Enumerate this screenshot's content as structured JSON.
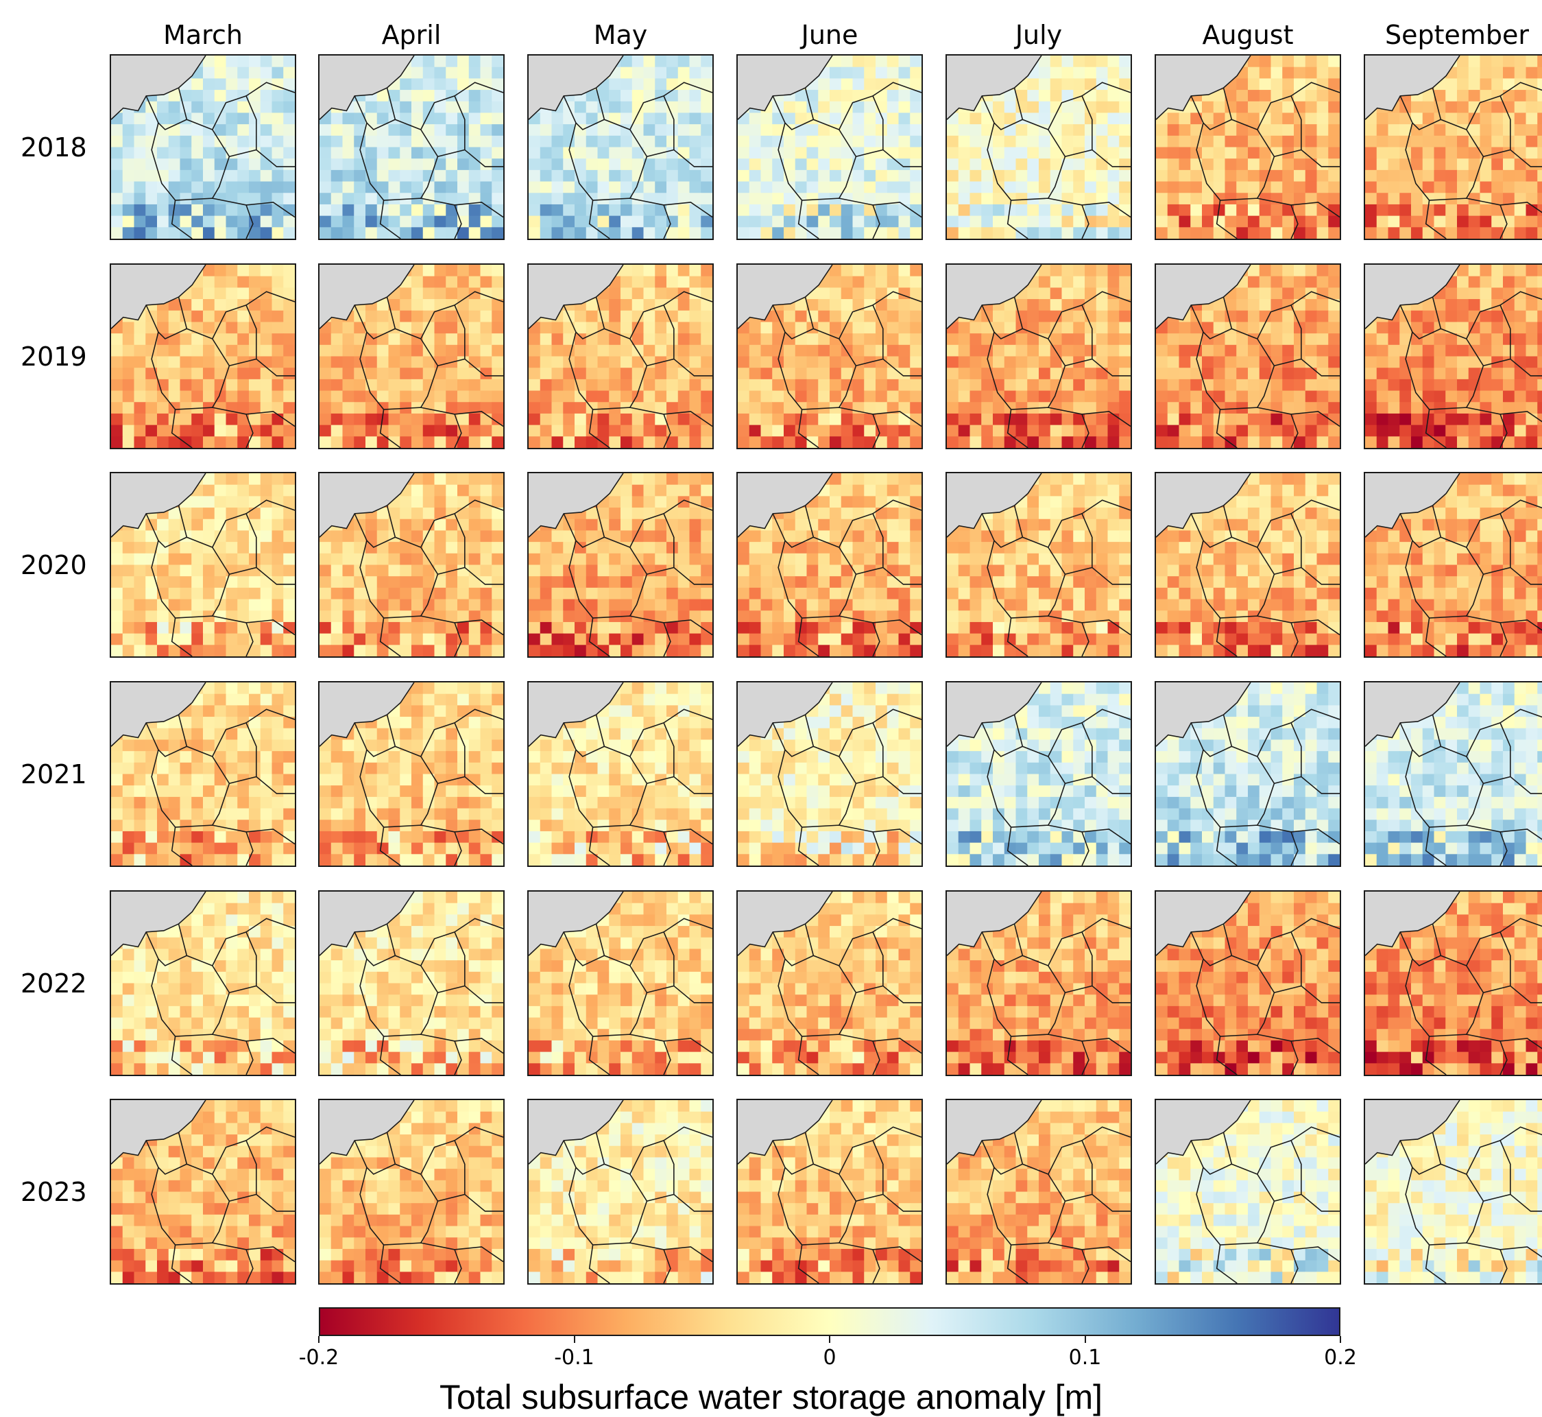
{
  "figure": {
    "columns": [
      "March",
      "April",
      "May",
      "June",
      "July",
      "August",
      "September"
    ],
    "rows": [
      "2018",
      "2019",
      "2020",
      "2021",
      "2022",
      "2023"
    ],
    "colorbar": {
      "label": "Total subsurface water storage anomaly [m]",
      "ticks": [
        "-0.2",
        "-0.1",
        "0",
        "0.1",
        "0.2"
      ],
      "range": [
        -0.2,
        0.2
      ],
      "colors": [
        "#a50026",
        "#d73027",
        "#f46d43",
        "#fdae61",
        "#fee090",
        "#ffffbf",
        "#e0f3f8",
        "#abd9e9",
        "#74add1",
        "#4575b4",
        "#313695"
      ]
    },
    "colors": {
      "sea": "#d6d6d6",
      "border": "#1a1a1a"
    },
    "anomaly_levels": [
      [
        0.06,
        0.06,
        0.05,
        0.03,
        0.0,
        -0.07,
        -0.07
      ],
      [
        -0.07,
        -0.07,
        -0.07,
        -0.07,
        -0.08,
        -0.09,
        -0.1
      ],
      [
        -0.04,
        -0.06,
        -0.08,
        -0.07,
        -0.06,
        -0.07,
        -0.08
      ],
      [
        -0.05,
        -0.05,
        -0.03,
        -0.01,
        0.05,
        0.06,
        0.05
      ],
      [
        -0.03,
        -0.03,
        -0.05,
        -0.06,
        -0.08,
        -0.1,
        -0.1
      ],
      [
        -0.07,
        -0.06,
        -0.02,
        -0.06,
        -0.07,
        0.01,
        0.0
      ]
    ]
  }
}
